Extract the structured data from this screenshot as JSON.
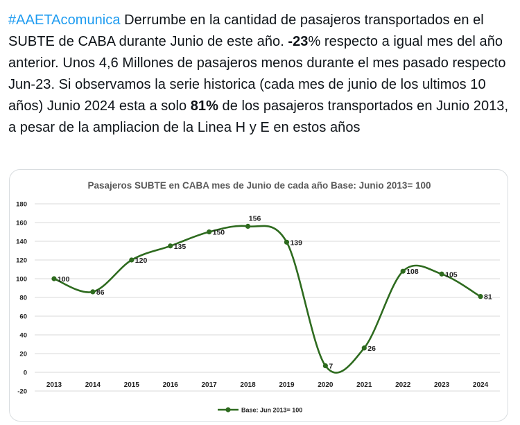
{
  "tweet": {
    "hashtag": "#AAETAcomunica",
    "text_1": " Derrumbe en la cantidad de pasajeros transportados en el SUBTE de CABA durante Junio de este año. ",
    "bold_1": "-23",
    "text_2": "% respecto a igual mes del año anterior. Unos 4,6 Millones de pasajeros menos durante el mes pasado respecto Jun-23. Si observamos la serie historica (cada mes de junio de los ultimos 10 años) Junio 2024 esta a solo ",
    "bold_2": "81%",
    "text_3": " de los pasajeros transportados en Junio 2013, a pesar de la ampliacion de la Linea H y E en estos años"
  },
  "colors": {
    "hashtag": "#1d9bf0",
    "text": "#0f1419",
    "series": "#2e6b1f",
    "title": "#595959",
    "grid": "#d9d9d9"
  },
  "chart_data": {
    "type": "line",
    "title": "Pasajeros SUBTE en CABA mes de Junio de cada año Base: Junio 2013= 100",
    "categories": [
      "2013",
      "2014",
      "2015",
      "2016",
      "2017",
      "2018",
      "2019",
      "2020",
      "2021",
      "2022",
      "2023",
      "2024"
    ],
    "series": [
      {
        "name": "Base: Jun 2013= 100",
        "values": [
          100,
          86,
          120,
          135,
          150,
          156,
          139,
          7,
          26,
          108,
          105,
          81
        ]
      }
    ],
    "ylim": [
      -20,
      180
    ],
    "yticks": [
      -20,
      0,
      20,
      40,
      60,
      80,
      100,
      120,
      140,
      160,
      180
    ],
    "grid": true,
    "smooth": true,
    "data_labels": true,
    "legend": "bottom"
  }
}
